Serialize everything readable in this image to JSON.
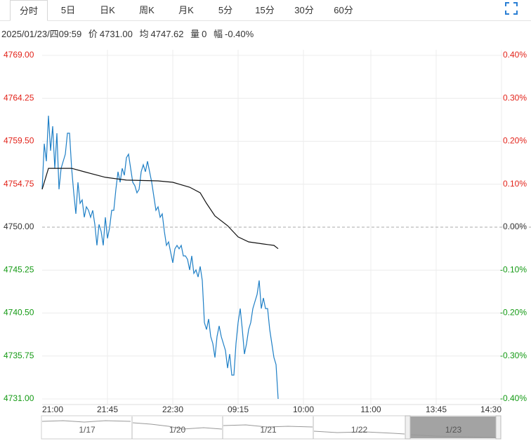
{
  "tabs": [
    "分时",
    "5日",
    "日K",
    "周K",
    "月K",
    "5分",
    "15分",
    "30分",
    "60分"
  ],
  "info": {
    "datetime": "2025/01/23/四09:59",
    "price_label": "价",
    "price": "4731.00",
    "avg_label": "均",
    "avg": "4747.62",
    "vol_label": "量",
    "vol": "0",
    "chg_label": "幅",
    "chg": "-0.40%"
  },
  "chart_data": {
    "type": "line",
    "x": [
      0,
      1,
      2,
      3,
      4,
      5,
      6,
      7,
      8,
      9,
      10,
      11,
      12,
      13,
      14,
      15,
      16,
      17,
      18,
      19,
      20,
      21,
      22,
      23,
      24,
      25,
      26,
      27,
      28,
      29,
      30,
      31,
      32,
      33,
      34,
      35,
      36,
      37,
      38,
      39,
      40,
      41,
      42,
      43,
      44,
      45,
      46,
      47,
      48,
      49,
      50,
      51,
      52,
      53,
      54,
      55,
      56,
      57,
      58,
      59,
      60,
      61,
      62,
      63,
      64,
      65,
      66,
      67,
      68,
      69,
      70,
      71,
      72,
      73,
      74,
      75,
      76,
      77,
      78,
      79,
      80,
      81,
      82,
      83,
      84,
      85,
      86,
      87,
      88,
      89,
      90,
      91,
      92,
      93,
      94,
      95,
      96,
      97,
      98,
      99,
      100,
      101,
      102,
      103,
      104,
      105,
      106,
      107,
      108,
      109,
      110,
      111,
      112
    ],
    "series": [
      {
        "color": "#1e7fc6",
        "values": [
          4754.19,
          4759.23,
          4757.29,
          4762.33,
          4758.45,
          4761.17,
          4756.51,
          4760.39,
          4754.19,
          4756.51,
          4757.29,
          4758.07,
          4760.39,
          4760.39,
          4756.51,
          4753.8,
          4751.47,
          4754.96,
          4752.64,
          4753.02,
          4751.09,
          4752.25,
          4751.86,
          4751.09,
          4751.86,
          4750.31,
          4747.98,
          4750.31,
          4749.53,
          4747.98,
          4751.09,
          4748.76,
          4749.92,
          4751.86,
          4751.86,
          4754.19,
          4756.13,
          4754.96,
          4756.51,
          4755.74,
          4757.68,
          4758.07,
          4756.51,
          4754.96,
          4754.58,
          4753.8,
          4754.19,
          4756.13,
          4756.9,
          4756.13,
          4757.29,
          4756.13,
          4754.96,
          4753.41,
          4751.86,
          4752.25,
          4751.09,
          4751.47,
          4749.53,
          4747.98,
          4748.37,
          4747.21,
          4746.05,
          4747.6,
          4747.98,
          4747.6,
          4747.98,
          4746.82,
          4746.82,
          4746.43,
          4745.27,
          4746.82,
          4744.88,
          4745.27,
          4744.49,
          4745.66,
          4744.11,
          4739.45,
          4738.68,
          4739.84,
          4737.9,
          4737.13,
          4735.58,
          4737.9,
          4739.07,
          4737.9,
          4737.13,
          4736.35,
          4734.41,
          4735.96,
          4733.64,
          4733.64,
          4737.13,
          4739.45,
          4741.0,
          4738.68,
          4735.96,
          4737.13,
          4738.68,
          4739.45,
          4741.0,
          4741.78,
          4742.55,
          4744.11,
          4741.0,
          4742.17,
          4741.0,
          4741.0,
          4738.68,
          4737.13,
          4735.58,
          4734.8,
          4731.0
        ]
      },
      {
        "color": "#111111",
        "x": [
          0,
          3,
          14,
          20,
          30,
          40,
          55,
          62,
          70,
          75,
          78,
          82,
          88,
          93,
          98,
          105,
          110,
          112
        ],
        "values": [
          4754.19,
          4756.51,
          4756.51,
          4756.13,
          4755.51,
          4755.2,
          4755.12,
          4754.96,
          4754.42,
          4753.8,
          4752.64,
          4751.24,
          4750.16,
          4748.92,
          4748.37,
          4748.14,
          4747.98,
          4747.62
        ]
      }
    ],
    "xlim": [
      0,
      218
    ],
    "xticks": [
      {
        "value": 0,
        "label": "21:00"
      },
      {
        "value": 31,
        "label": "21:45"
      },
      {
        "value": 62,
        "label": "22:30"
      },
      {
        "value": 93,
        "label": "09:15"
      },
      {
        "value": 124,
        "label": "10:00"
      },
      {
        "value": 156,
        "label": "11:00"
      },
      {
        "value": 187,
        "label": "13:45"
      },
      {
        "value": 218,
        "label": "14:30"
      }
    ],
    "ylim": [
      4731,
      4769
    ],
    "yticks": [
      {
        "value": 4769,
        "label": "4769.00"
      },
      4764.25,
      {
        "value": 4759.5,
        "label": "4759.50"
      },
      4754.75,
      {
        "value": 4750,
        "label": "4750.00"
      },
      4745.25,
      {
        "value": 4740.5,
        "label": "4740.50"
      },
      4735.75,
      {
        "value": 4731,
        "label": "4731.00"
      }
    ],
    "y2lim": [
      -0.4,
      0.4
    ],
    "y2ticks": [
      {
        "value": 0.4,
        "label": "0.40%"
      },
      {
        "value": 0.3,
        "label": "0.30%"
      },
      {
        "value": 0.2,
        "label": "0.20%"
      },
      {
        "value": 0.1,
        "label": "0.10%"
      },
      {
        "value": 0,
        "label": "0.00%"
      },
      {
        "value": -0.1,
        "label": "-0.10%"
      },
      {
        "value": -0.2,
        "label": "-0.20%"
      },
      {
        "value": -0.3,
        "label": "-0.30%"
      },
      {
        "value": -0.4,
        "label": "-0.40%"
      }
    ],
    "baseline": 4750,
    "up_color": "#e2231a",
    "down_color": "#149a14",
    "grid": true,
    "navigator": [
      "1/17",
      "1/20",
      "1/21",
      "1/22",
      "1/23"
    ]
  }
}
